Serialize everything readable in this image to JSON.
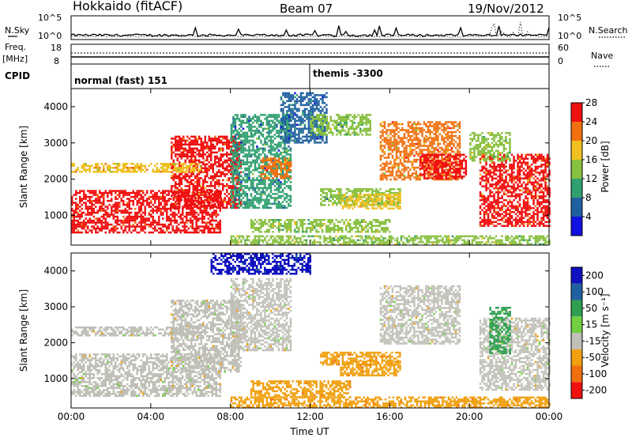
{
  "header": {
    "title": "Hokkaido (fitACF)",
    "beam": "Beam 07",
    "date": "19/Nov/2012"
  },
  "noise_panel": {
    "left_label": "N.Sky",
    "right_label": "N.Search",
    "left_ticks": [
      "10^5",
      "10^0"
    ],
    "right_ticks": [
      "10^5",
      "10^0"
    ]
  },
  "freq_panel": {
    "left_label": "Freq.",
    "left_unit": "[MHz]",
    "right_label": "Nave",
    "left_ticks": [
      "18",
      "8"
    ],
    "right_ticks": [
      "60",
      "0"
    ]
  },
  "cpid_panel": {
    "label": "CPID",
    "modes": [
      {
        "name": "normal (fast) 151",
        "start_hour": 0
      },
      {
        "name": "themis -3300",
        "start_hour": 12
      }
    ]
  },
  "chart_data": [
    {
      "type": "heatmap",
      "name": "power",
      "ylabel": "Slant Range [km]",
      "xlabel": "",
      "ylim": [
        180,
        4500
      ],
      "yticks": [
        1000,
        2000,
        3000,
        4000
      ],
      "xticks": [
        "00:00",
        "04:00",
        "08:00",
        "12:00",
        "16:00",
        "20:00",
        "00:00"
      ],
      "colorbar": {
        "label": "Power [dB]",
        "ticks": [
          "4",
          "8",
          "12",
          "16",
          "20",
          "24",
          "28"
        ],
        "colors": [
          "#1010e0",
          "#2060a0",
          "#30a070",
          "#88c040",
          "#f0c020",
          "#f07010",
          "#f01010"
        ]
      },
      "regions": [
        {
          "x": [
            0,
            7.5
          ],
          "y": [
            500,
            1700
          ],
          "level": 28
        },
        {
          "x": [
            5,
            8.5
          ],
          "y": [
            1200,
            3200
          ],
          "level": 26
        },
        {
          "x": [
            0,
            6.5
          ],
          "y": [
            2200,
            2450
          ],
          "level": 20
        },
        {
          "x": [
            8,
            11
          ],
          "y": [
            1200,
            3800
          ],
          "level": 10
        },
        {
          "x": [
            9.5,
            11
          ],
          "y": [
            2000,
            2600
          ],
          "level": 22
        },
        {
          "x": [
            10.5,
            12.8
          ],
          "y": [
            3000,
            4400
          ],
          "level": 8
        },
        {
          "x": [
            12,
            15
          ],
          "y": [
            3200,
            3800
          ],
          "level": 14
        },
        {
          "x": [
            12.5,
            16.5
          ],
          "y": [
            1300,
            1750
          ],
          "level": 14
        },
        {
          "x": [
            13.5,
            16.5
          ],
          "y": [
            1200,
            1600
          ],
          "level": 18
        },
        {
          "x": [
            9,
            16
          ],
          "y": [
            550,
            900
          ],
          "level": 16
        },
        {
          "x": [
            15.5,
            19.5
          ],
          "y": [
            2000,
            3600
          ],
          "level": 22
        },
        {
          "x": [
            17.5,
            19.8
          ],
          "y": [
            2000,
            2700
          ],
          "level": 28
        },
        {
          "x": [
            20.5,
            24
          ],
          "y": [
            700,
            2700
          ],
          "level": 26
        },
        {
          "x": [
            20,
            22
          ],
          "y": [
            2500,
            3300
          ],
          "level": 16
        },
        {
          "x": [
            8,
            24
          ],
          "y": [
            180,
            450
          ],
          "level": 16
        }
      ]
    },
    {
      "type": "heatmap",
      "name": "velocity",
      "ylabel": "Slant Range [km]",
      "xlabel": "Time UT",
      "ylim": [
        180,
        4500
      ],
      "yticks": [
        1000,
        2000,
        3000,
        4000
      ],
      "xticks": [
        "00:00",
        "04:00",
        "08:00",
        "12:00",
        "16:00",
        "20:00",
        "00:00"
      ],
      "colorbar": {
        "label": "Velocity [m s⁻¹]",
        "unit_super": "-1",
        "ticks": [
          "200",
          "100",
          "50",
          "15",
          "-15",
          "-50",
          "-100",
          "-200"
        ],
        "colors": [
          "#1010c0",
          "#2060a0",
          "#30a050",
          "#70d040",
          "#c0c0b8",
          "#f0a010",
          "#f07010",
          "#f01010"
        ]
      },
      "regions": [
        {
          "x": [
            0,
            7.5
          ],
          "y": [
            500,
            1700
          ],
          "level": 0
        },
        {
          "x": [
            5,
            8.5
          ],
          "y": [
            1200,
            3200
          ],
          "level": 0
        },
        {
          "x": [
            0,
            6.5
          ],
          "y": [
            2200,
            2450
          ],
          "level": 0
        },
        {
          "x": [
            8,
            11
          ],
          "y": [
            1800,
            3800
          ],
          "level": 0
        },
        {
          "x": [
            12.5,
            16.5
          ],
          "y": [
            1400,
            1750
          ],
          "level": -40
        },
        {
          "x": [
            13.5,
            16.5
          ],
          "y": [
            1100,
            1500
          ],
          "level": -40
        },
        {
          "x": [
            9,
            14
          ],
          "y": [
            500,
            950
          ],
          "level": -40
        },
        {
          "x": [
            15.5,
            19.5
          ],
          "y": [
            2000,
            3600
          ],
          "level": 0
        },
        {
          "x": [
            20.5,
            24
          ],
          "y": [
            700,
            2700
          ],
          "level": 0
        },
        {
          "x": [
            21,
            22
          ],
          "y": [
            1700,
            3000
          ],
          "level": 30
        },
        {
          "x": [
            8,
            24
          ],
          "y": [
            180,
            500
          ],
          "level": -40
        },
        {
          "x": [
            7,
            12
          ],
          "y": [
            3900,
            4500
          ],
          "level": 150
        }
      ]
    }
  ]
}
